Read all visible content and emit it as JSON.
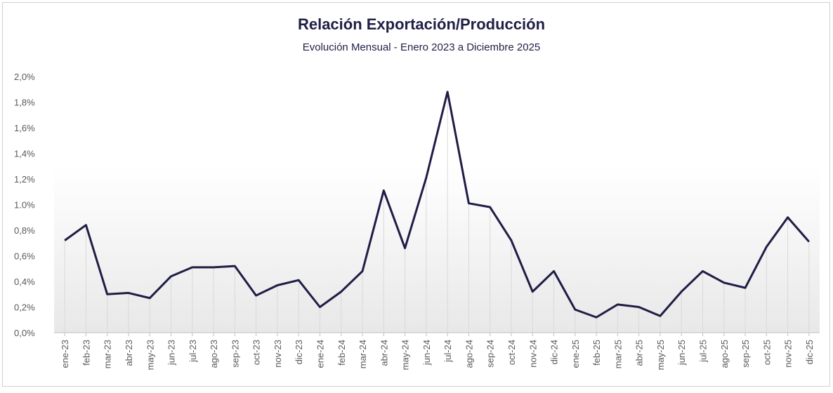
{
  "chart_data": {
    "type": "line",
    "title": "Relación  Exportación/Producción",
    "subtitle": "Evolución  Mensual  - Enero 2023  a Diciembre 2025",
    "categories": [
      "ene-23",
      "feb-23",
      "mar-23",
      "abr-23",
      "may-23",
      "jun-23",
      "jul-23",
      "ago-23",
      "sep-23",
      "oct-23",
      "nov-23",
      "dic-23",
      "ene-24",
      "feb-24",
      "mar-24",
      "abr-24",
      "may-24",
      "jun-24",
      "jul-24",
      "ago-24",
      "sep-24",
      "oct-24",
      "nov-24",
      "dic-24",
      "ene-25",
      "feb-25",
      "mar-25",
      "abr-25",
      "may-25",
      "jun-25",
      "jul-25",
      "ago-25",
      "sep-25",
      "oct-25",
      "nov-25",
      "dic-25"
    ],
    "series": [
      {
        "color": "#1f1d45",
        "values": [
          0.72,
          0.84,
          0.3,
          0.31,
          0.27,
          0.44,
          0.51,
          0.51,
          0.52,
          0.29,
          0.37,
          0.41,
          0.2,
          0.32,
          0.48,
          1.11,
          0.66,
          1.21,
          1.88,
          1.01,
          0.98,
          0.72,
          0.32,
          0.48,
          0.18,
          0.12,
          0.22,
          0.2,
          0.13,
          0.32,
          0.48,
          0.39,
          0.35,
          0.67,
          0.9,
          0.71
        ]
      }
    ],
    "ylim": [
      0,
      2.0
    ],
    "yticks": [
      {
        "value": 0,
        "label": "0,0%"
      },
      {
        "value": 0.2,
        "label": "0,2%"
      },
      {
        "value": 0.4,
        "label": "0,4%"
      },
      {
        "value": 0.6,
        "label": "0,6%"
      },
      {
        "value": 0.8,
        "label": "0,8%"
      },
      {
        "value": 1.0,
        "label": "1.0%"
      },
      {
        "value": 1.2,
        "label": "1,2%"
      },
      {
        "value": 1.4,
        "label": "1,4%"
      },
      {
        "value": 1.6,
        "label": "1,6%"
      },
      {
        "value": 1.8,
        "label": "1,8%"
      },
      {
        "value": 2.0,
        "label": "2,0%"
      }
    ],
    "drop_lines": true
  }
}
